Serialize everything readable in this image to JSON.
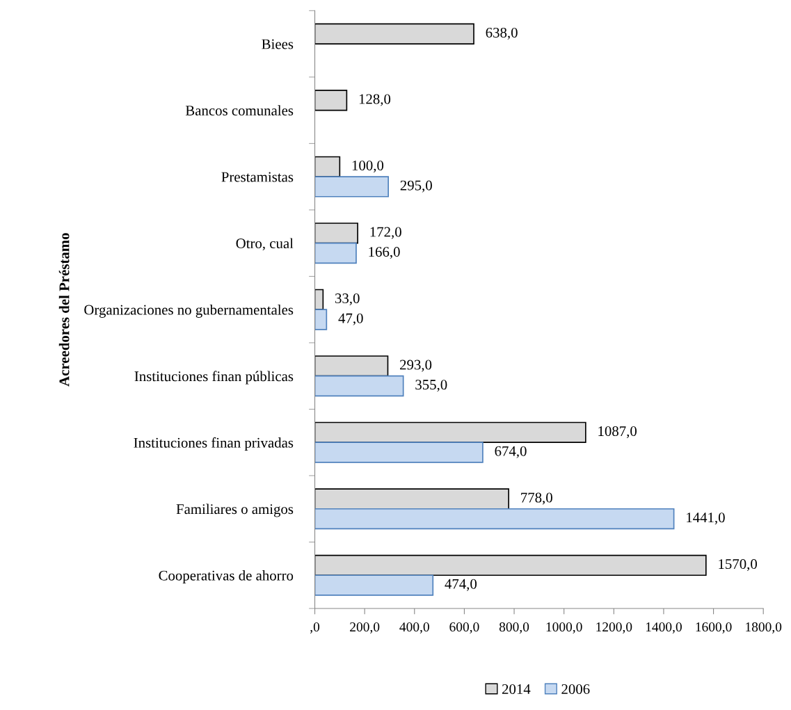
{
  "chart_data": {
    "type": "bar",
    "orientation": "horizontal",
    "ylabel": "Acreedores del Préstamo",
    "categories": [
      "Biees",
      "Bancos comunales",
      "Prestamistas",
      "Otro, cual",
      "Organizaciones no gubernamentales",
      "Instituciones finan públicas",
      "Instituciones finan privadas",
      "Familiares o amigos",
      "Cooperativas de ahorro"
    ],
    "series": [
      {
        "name": "2014",
        "color": "#d9d9d9",
        "values": [
          638,
          128,
          100,
          172,
          33,
          293,
          1087,
          778,
          1570
        ],
        "value_labels": [
          "638,0",
          "128,0",
          "100,0",
          "172,0",
          "33,0",
          "293,0",
          "1087,0",
          "778,0",
          "1570,0"
        ]
      },
      {
        "name": "2006",
        "color": "#c6d9f1",
        "values": [
          null,
          null,
          295,
          166,
          47,
          355,
          674,
          1441,
          474
        ],
        "value_labels": [
          null,
          null,
          "295,0",
          "166,0",
          "47,0",
          "355,0",
          "674,0",
          "1441,0",
          "474,0"
        ]
      }
    ],
    "xlim": [
      0,
      1800
    ],
    "xticks": [
      {
        "value": 0,
        "label": ",0"
      },
      {
        "value": 200,
        "label": "200,0"
      },
      {
        "value": 400,
        "label": "400,0"
      },
      {
        "value": 600,
        "label": "600,0"
      },
      {
        "value": 800,
        "label": "800,0"
      },
      {
        "value": 1000,
        "label": "1000,0"
      },
      {
        "value": 1200,
        "label": "1200,0"
      },
      {
        "value": 1400,
        "label": "1400,0"
      },
      {
        "value": 1600,
        "label": "1600,0"
      },
      {
        "value": 1800,
        "label": "1800,0"
      }
    ],
    "grid": false,
    "legend": "bottom"
  }
}
